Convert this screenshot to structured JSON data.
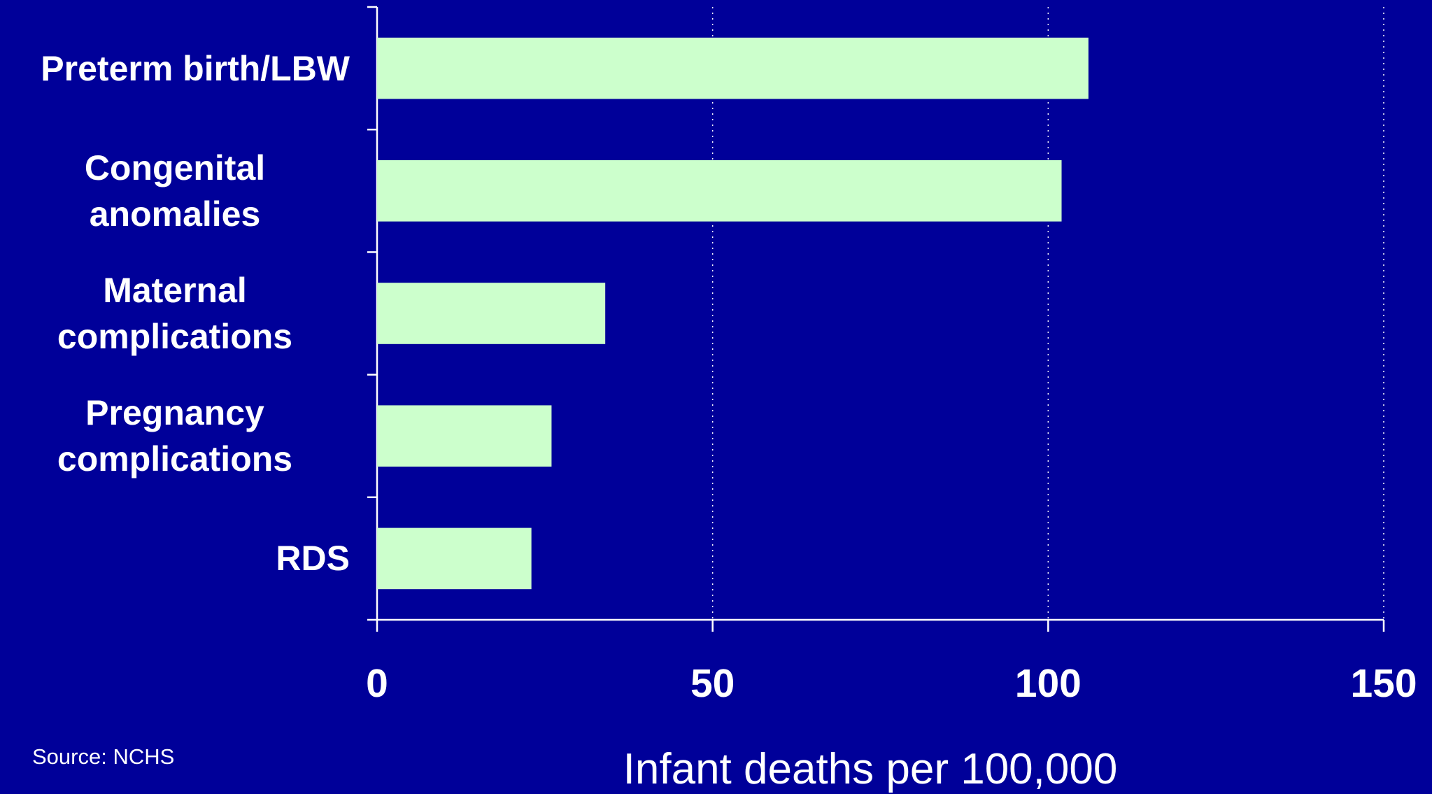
{
  "chart_data": {
    "type": "bar",
    "orientation": "horizontal",
    "categories": [
      "Preterm birth/LBW",
      "Congenital anomalies",
      "Maternal complications",
      "Pregnancy complications",
      "RDS"
    ],
    "values": [
      106,
      102,
      34,
      26,
      23
    ],
    "color": "#ccffcc",
    "xlim": [
      0,
      150
    ],
    "xticks": [
      0,
      50,
      100,
      150
    ],
    "grid": true,
    "x_label": "Infant deaths per 100,000",
    "source": "Source: NCHS"
  }
}
